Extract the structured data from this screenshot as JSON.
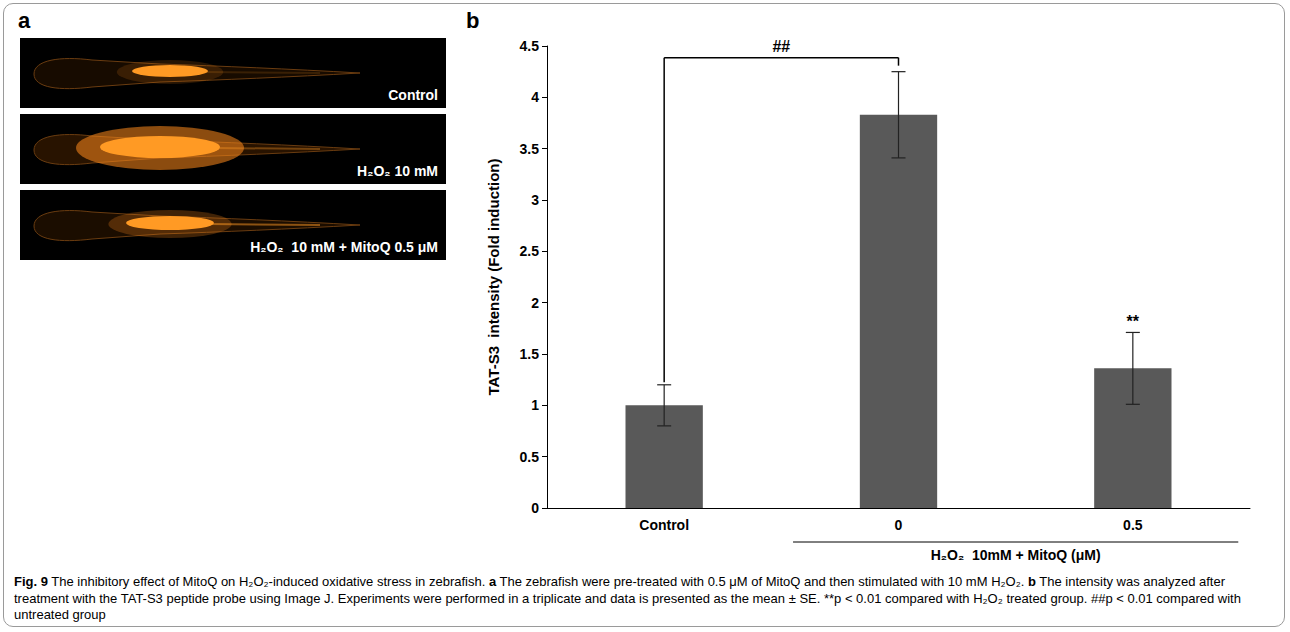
{
  "panel_a": {
    "letter": "a",
    "images": [
      {
        "label": "Control"
      },
      {
        "label": "H₂O₂ 10 mM"
      },
      {
        "label": "H₂O₂  10 mM + MitoQ 0.5 μM"
      }
    ]
  },
  "chart_data": {
    "type": "bar",
    "panel_letter": "b",
    "y_label": "TAT-S3  intensity (Fold induction)",
    "categories": [
      "Control",
      "0",
      "0.5"
    ],
    "values": [
      1.0,
      3.83,
      1.36
    ],
    "errors": [
      0.2,
      0.42,
      0.35
    ],
    "color": "#595959",
    "ylim": [
      0,
      4.5
    ],
    "yticks": [
      0,
      0.5,
      1,
      1.5,
      2,
      2.5,
      3,
      3.5,
      4,
      4.5
    ],
    "grid": false,
    "group_label": {
      "text": "H₂O₂  10mM + MitoQ (μM)",
      "categories": [
        "0",
        "0.5"
      ]
    },
    "annotations": [
      {
        "text": "##",
        "from": "Control",
        "to": "0"
      },
      {
        "text": "**",
        "at": "0.5"
      }
    ]
  },
  "caption": {
    "label": "Fig. 9",
    "intro": "The inhibitory effect of MitoQ on H₂O₂-induced oxidative stress in zebrafish.",
    "parts": [
      {
        "panel": "a",
        "text": "The zebrafish were pre-treated with 0.5 μM of MitoQ and then stimulated with 10 mM H₂O₂."
      },
      {
        "panel": "b",
        "text": "The intensity was analyzed after treatment with the TAT-S3 peptide probe using Image J. Experiments were performed in a triplicate and data is presented as the mean ± SE. **p < 0.01 compared with H₂O₂ treated group. ##p < 0.01 compared with untreated group"
      }
    ]
  }
}
